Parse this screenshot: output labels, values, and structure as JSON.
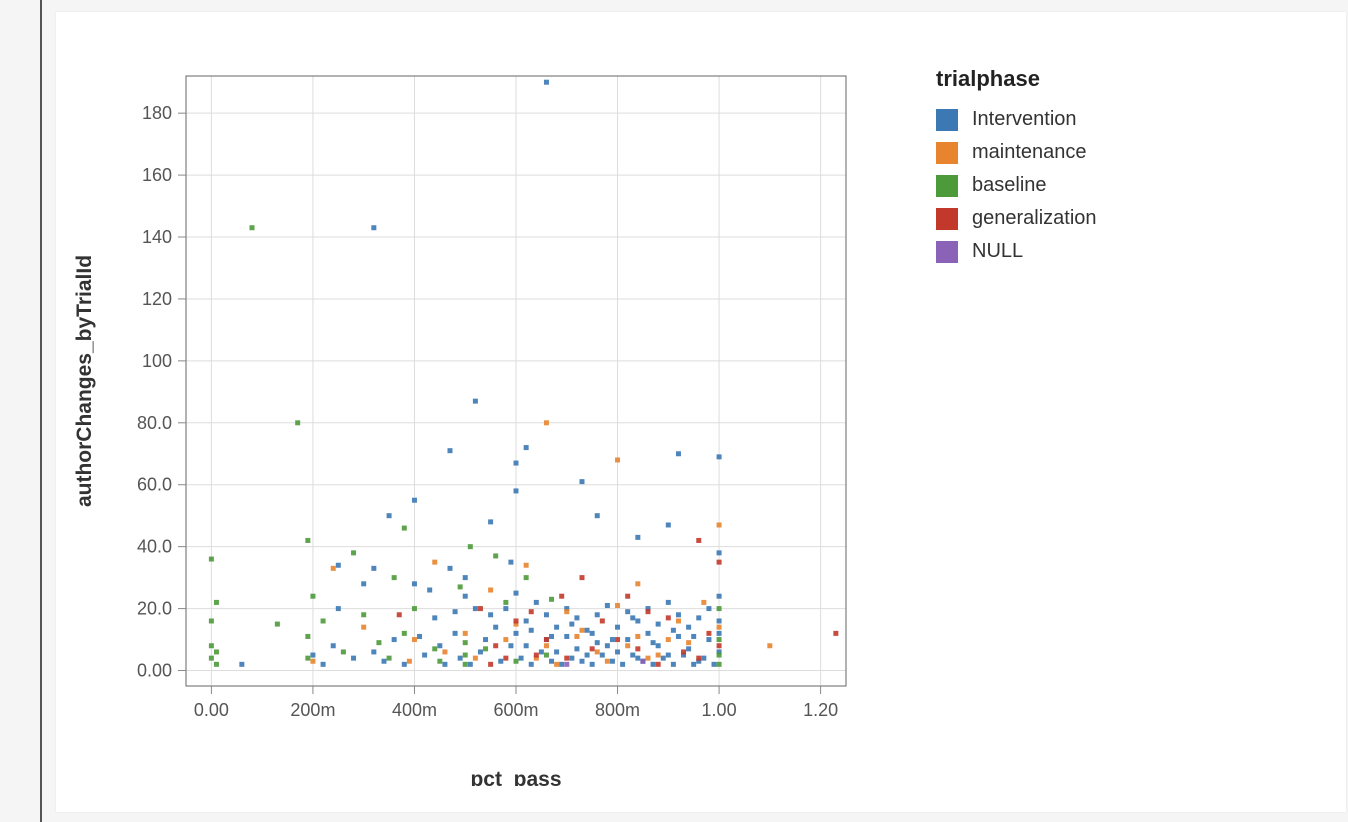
{
  "chart": {
    "type": "scatter",
    "background_color": "#ffffff",
    "page_background": "#f5f5f5",
    "plot_border_color": "#666666",
    "grid_color": "#dddddd",
    "tick_color": "#888888",
    "axis_text_color": "#555555",
    "title_color": "#333333",
    "marker_size": 5,
    "marker_opacity": 0.9,
    "x": {
      "label": "pct_pass",
      "min": -0.05,
      "max": 1.25,
      "ticks": [
        0.0,
        0.2,
        0.4,
        0.6,
        0.8,
        1.0,
        1.2
      ],
      "tick_labels": [
        "0.00",
        "200m",
        "400m",
        "600m",
        "800m",
        "1.00",
        "1.20"
      ],
      "label_fontsize": 21,
      "tick_fontsize": 18
    },
    "y": {
      "label": "authorChanges_byTrialId",
      "min": -5,
      "max": 192,
      "ticks": [
        0,
        20,
        40,
        60,
        80,
        100,
        120,
        140,
        160,
        180
      ],
      "tick_labels": [
        "0.00",
        "20.0",
        "40.0",
        "60.0",
        "80.0",
        "100",
        "120",
        "140",
        "160",
        "180"
      ],
      "label_fontsize": 21,
      "tick_fontsize": 18
    },
    "legend": {
      "title": "trialphase",
      "title_fontsize": 22,
      "label_fontsize": 20,
      "items": [
        {
          "key": "Intervention",
          "color": "#3b78b4"
        },
        {
          "key": "maintenance",
          "color": "#e8842e"
        },
        {
          "key": "baseline",
          "color": "#4c9a3a"
        },
        {
          "key": "generalization",
          "color": "#c2392b"
        },
        {
          "key": "NULL",
          "color": "#8a62b8"
        }
      ]
    },
    "series": {
      "Intervention": [
        [
          0.66,
          190
        ],
        [
          0.32,
          143
        ],
        [
          0.52,
          87
        ],
        [
          0.47,
          71
        ],
        [
          0.6,
          67
        ],
        [
          0.62,
          72
        ],
        [
          0.6,
          58
        ],
        [
          0.73,
          61
        ],
        [
          0.76,
          50
        ],
        [
          0.9,
          47
        ],
        [
          1.0,
          38
        ],
        [
          0.84,
          43
        ],
        [
          1.0,
          69
        ],
        [
          0.92,
          70
        ],
        [
          0.55,
          48
        ],
        [
          0.4,
          55
        ],
        [
          0.35,
          50
        ],
        [
          0.25,
          34
        ],
        [
          0.3,
          28
        ],
        [
          0.25,
          20
        ],
        [
          0.4,
          28
        ],
        [
          0.43,
          26
        ],
        [
          0.47,
          33
        ],
        [
          0.5,
          30
        ],
        [
          0.5,
          24
        ],
        [
          0.52,
          20
        ],
        [
          0.55,
          18
        ],
        [
          0.56,
          14
        ],
        [
          0.58,
          20
        ],
        [
          0.6,
          25
        ],
        [
          0.6,
          12
        ],
        [
          0.62,
          8
        ],
        [
          0.62,
          16
        ],
        [
          0.64,
          22
        ],
        [
          0.66,
          18
        ],
        [
          0.66,
          10
        ],
        [
          0.68,
          6
        ],
        [
          0.68,
          14
        ],
        [
          0.7,
          11
        ],
        [
          0.7,
          20
        ],
        [
          0.72,
          7
        ],
        [
          0.72,
          17
        ],
        [
          0.74,
          5
        ],
        [
          0.74,
          13
        ],
        [
          0.76,
          9
        ],
        [
          0.76,
          18
        ],
        [
          0.78,
          21
        ],
        [
          0.78,
          8
        ],
        [
          0.8,
          14
        ],
        [
          0.8,
          6
        ],
        [
          0.82,
          19
        ],
        [
          0.82,
          10
        ],
        [
          0.84,
          4
        ],
        [
          0.84,
          16
        ],
        [
          0.86,
          12
        ],
        [
          0.86,
          20
        ],
        [
          0.88,
          8
        ],
        [
          0.88,
          15
        ],
        [
          0.9,
          22
        ],
        [
          0.9,
          5
        ],
        [
          0.92,
          11
        ],
        [
          0.92,
          18
        ],
        [
          0.94,
          7
        ],
        [
          0.94,
          14
        ],
        [
          0.96,
          3
        ],
        [
          0.96,
          17
        ],
        [
          0.98,
          10
        ],
        [
          0.98,
          20
        ],
        [
          1.0,
          24
        ],
        [
          1.0,
          12
        ],
        [
          1.0,
          6
        ],
        [
          1.0,
          16
        ],
        [
          0.2,
          5
        ],
        [
          0.22,
          2
        ],
        [
          0.24,
          8
        ],
        [
          0.28,
          4
        ],
        [
          0.32,
          6
        ],
        [
          0.34,
          3
        ],
        [
          0.36,
          10
        ],
        [
          0.38,
          2
        ],
        [
          0.42,
          5
        ],
        [
          0.45,
          8
        ],
        [
          0.46,
          2
        ],
        [
          0.48,
          12
        ],
        [
          0.49,
          4
        ],
        [
          0.51,
          2
        ],
        [
          0.53,
          6
        ],
        [
          0.54,
          10
        ],
        [
          0.57,
          3
        ],
        [
          0.59,
          8
        ],
        [
          0.61,
          4
        ],
        [
          0.63,
          2
        ],
        [
          0.65,
          6
        ],
        [
          0.67,
          3
        ],
        [
          0.69,
          2
        ],
        [
          0.71,
          4
        ],
        [
          0.73,
          3
        ],
        [
          0.75,
          2
        ],
        [
          0.77,
          5
        ],
        [
          0.79,
          3
        ],
        [
          0.81,
          2
        ],
        [
          0.83,
          5
        ],
        [
          0.85,
          3
        ],
        [
          0.87,
          2
        ],
        [
          0.89,
          4
        ],
        [
          0.91,
          2
        ],
        [
          0.93,
          5
        ],
        [
          0.95,
          2
        ],
        [
          0.97,
          4
        ],
        [
          0.99,
          2
        ],
        [
          0.06,
          2
        ],
        [
          0.59,
          35
        ],
        [
          0.32,
          33
        ],
        [
          0.63,
          13
        ],
        [
          0.67,
          11
        ],
        [
          0.71,
          15
        ],
        [
          0.75,
          12
        ],
        [
          0.79,
          10
        ],
        [
          0.83,
          17
        ],
        [
          0.87,
          9
        ],
        [
          0.91,
          13
        ],
        [
          0.95,
          11
        ],
        [
          0.44,
          17
        ],
        [
          0.48,
          19
        ],
        [
          0.41,
          11
        ]
      ],
      "maintenance": [
        [
          0.24,
          33
        ],
        [
          0.44,
          35
        ],
        [
          0.66,
          80
        ],
        [
          0.62,
          34
        ],
        [
          0.8,
          68
        ],
        [
          1.0,
          47
        ],
        [
          1.1,
          8
        ],
        [
          0.3,
          14
        ],
        [
          0.55,
          26
        ],
        [
          0.6,
          15
        ],
        [
          0.66,
          8
        ],
        [
          0.7,
          19
        ],
        [
          0.73,
          13
        ],
        [
          0.76,
          6
        ],
        [
          0.8,
          21
        ],
        [
          0.84,
          11
        ],
        [
          0.84,
          28
        ],
        [
          0.88,
          5
        ],
        [
          0.92,
          16
        ],
        [
          0.94,
          9
        ],
        [
          0.97,
          22
        ],
        [
          1.0,
          14
        ],
        [
          0.5,
          12
        ],
        [
          0.2,
          3
        ],
        [
          0.4,
          10
        ],
        [
          0.46,
          6
        ],
        [
          0.52,
          4
        ],
        [
          0.58,
          10
        ],
        [
          0.64,
          4
        ],
        [
          0.68,
          2
        ],
        [
          0.72,
          11
        ],
        [
          0.78,
          3
        ],
        [
          0.82,
          8
        ],
        [
          0.86,
          4
        ],
        [
          0.9,
          10
        ],
        [
          0.39,
          3
        ]
      ],
      "baseline": [
        [
          0.0,
          4
        ],
        [
          0.0,
          8
        ],
        [
          0.0,
          16
        ],
        [
          0.0,
          36
        ],
        [
          0.01,
          6
        ],
        [
          0.01,
          2
        ],
        [
          0.01,
          22
        ],
        [
          0.08,
          143
        ],
        [
          0.5,
          5
        ],
        [
          0.5,
          9
        ],
        [
          0.5,
          2
        ],
        [
          0.17,
          80
        ],
        [
          0.19,
          42
        ],
        [
          0.19,
          11
        ],
        [
          0.2,
          24
        ],
        [
          0.22,
          16
        ],
        [
          0.28,
          38
        ],
        [
          0.3,
          18
        ],
        [
          0.36,
          30
        ],
        [
          0.38,
          46
        ],
        [
          0.4,
          20
        ],
        [
          0.49,
          27
        ],
        [
          0.51,
          40
        ],
        [
          0.56,
          37
        ],
        [
          0.58,
          22
        ],
        [
          0.38,
          12
        ],
        [
          0.62,
          30
        ],
        [
          0.67,
          23
        ],
        [
          1.0,
          2
        ],
        [
          1.0,
          20
        ],
        [
          1.0,
          10
        ],
        [
          1.0,
          5
        ],
        [
          0.19,
          4
        ],
        [
          0.26,
          6
        ],
        [
          0.33,
          9
        ],
        [
          0.35,
          4
        ],
        [
          0.44,
          7
        ],
        [
          0.13,
          15
        ],
        [
          0.54,
          7
        ],
        [
          0.6,
          3
        ],
        [
          0.66,
          5
        ],
        [
          0.45,
          3
        ]
      ],
      "generalization": [
        [
          1.23,
          12
        ],
        [
          1.0,
          35
        ],
        [
          0.96,
          42
        ],
        [
          0.9,
          17
        ],
        [
          0.86,
          19
        ],
        [
          0.82,
          24
        ],
        [
          0.73,
          30
        ],
        [
          0.69,
          24
        ],
        [
          0.66,
          10
        ],
        [
          0.6,
          16
        ],
        [
          0.56,
          8
        ],
        [
          0.53,
          20
        ],
        [
          0.55,
          2
        ],
        [
          0.7,
          4
        ],
        [
          0.75,
          7
        ],
        [
          0.8,
          10
        ],
        [
          0.88,
          2
        ],
        [
          0.93,
          6
        ],
        [
          0.96,
          4
        ],
        [
          0.98,
          12
        ],
        [
          1.0,
          8
        ],
        [
          0.64,
          5
        ],
        [
          0.58,
          4
        ],
        [
          0.37,
          18
        ],
        [
          0.63,
          19
        ],
        [
          0.77,
          16
        ],
        [
          0.84,
          7
        ]
      ],
      "NULL": [
        [
          0.7,
          2
        ],
        [
          0.85,
          3
        ]
      ]
    }
  }
}
